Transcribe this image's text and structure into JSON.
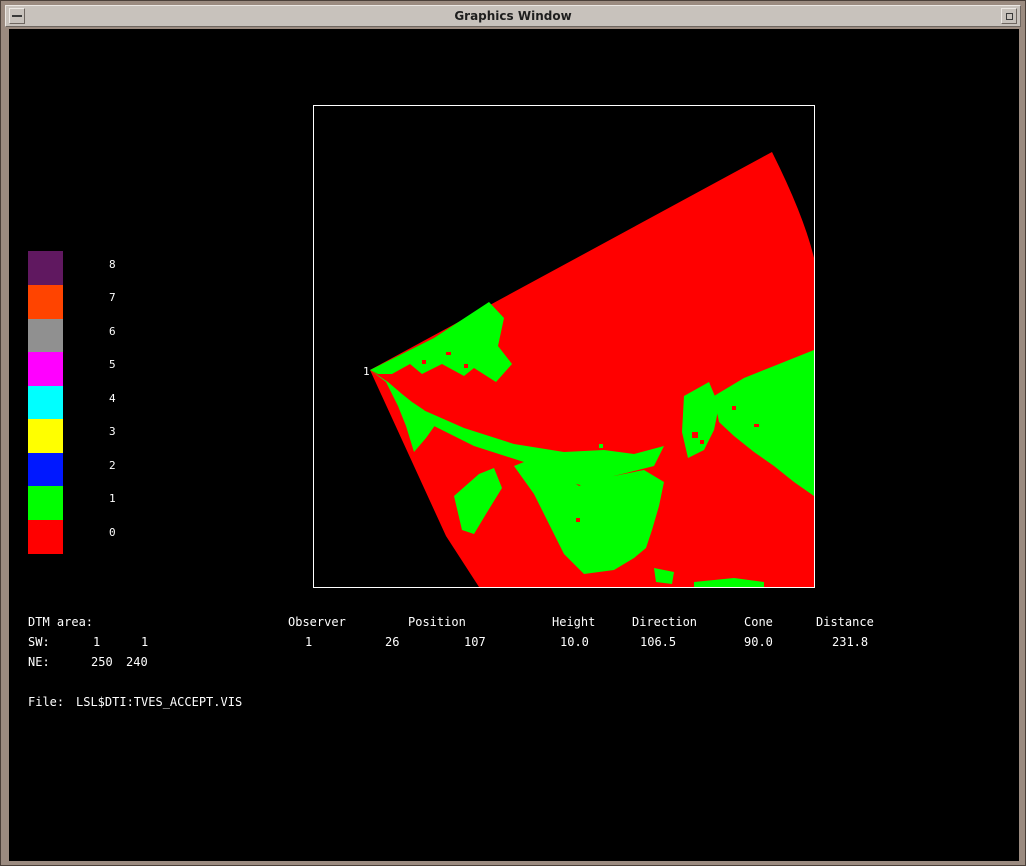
{
  "window": {
    "title": "Graphics Window"
  },
  "legend": [
    {
      "label": "8",
      "color": "#601860"
    },
    {
      "label": "7",
      "color": "#ff4400"
    },
    {
      "label": "6",
      "color": "#909090"
    },
    {
      "label": "5",
      "color": "#ff00ff"
    },
    {
      "label": "4",
      "color": "#00ffff"
    },
    {
      "label": "3",
      "color": "#ffff00"
    },
    {
      "label": "2",
      "color": "#0018ff"
    },
    {
      "label": "1",
      "color": "#00ff00"
    },
    {
      "label": "0",
      "color": "#ff0000"
    }
  ],
  "map": {
    "observer_marker": "1",
    "visible_color": "#00ff00",
    "invisible_color": "#ff0000"
  },
  "dtm": {
    "heading": "DTM area:",
    "sw_label": "SW:",
    "sw_x": "1",
    "sw_y": "1",
    "ne_label": "NE:",
    "ne_x": "250",
    "ne_y": "240"
  },
  "observer_table": {
    "headers": [
      "Observer",
      "Position",
      "Height",
      "Direction",
      "Cone",
      "Distance"
    ],
    "row": {
      "observer": "1",
      "pos_x": "26",
      "pos_y": "107",
      "height": "10.0",
      "direction": "106.5",
      "cone": "90.0",
      "distance": "231.8"
    }
  },
  "file": {
    "label": "File:",
    "path": "LSL$DTI:TVES_ACCEPT.VIS"
  }
}
